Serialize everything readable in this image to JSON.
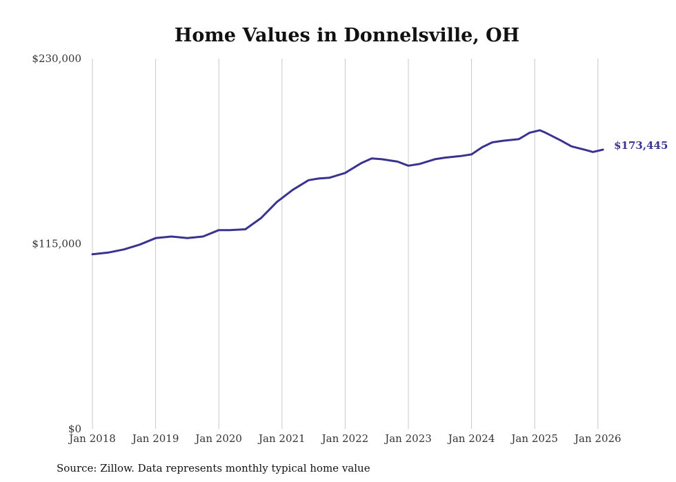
{
  "chart_data": {
    "type": "line",
    "title": "Home Values in Donnelsville, OH",
    "xlabel": "",
    "ylabel": "",
    "ylim": [
      0,
      230000
    ],
    "y_ticks": [
      {
        "value": 0,
        "label": "$0"
      },
      {
        "value": 115000,
        "label": "$115,000"
      },
      {
        "value": 230000,
        "label": "$230,000"
      }
    ],
    "x_ticks": [
      {
        "value": 2018.0,
        "label": "Jan 2018"
      },
      {
        "value": 2019.0,
        "label": "Jan 2019"
      },
      {
        "value": 2020.0,
        "label": "Jan 2020"
      },
      {
        "value": 2021.0,
        "label": "Jan 2021"
      },
      {
        "value": 2022.0,
        "label": "Jan 2022"
      },
      {
        "value": 2023.0,
        "label": "Jan 2023"
      },
      {
        "value": 2024.0,
        "label": "Jan 2024"
      },
      {
        "value": 2025.0,
        "label": "Jan 2025"
      },
      {
        "value": 2026.0,
        "label": "Jan 2026"
      }
    ],
    "xlim": [
      2018.0,
      2026.08
    ],
    "grid": "vertical",
    "series": [
      {
        "name": "Typical home value",
        "color": "#3a3290",
        "x": [
          2018.0,
          2018.25,
          2018.5,
          2018.75,
          2019.0,
          2019.25,
          2019.5,
          2019.75,
          2020.0,
          2020.17,
          2020.42,
          2020.67,
          2020.92,
          2021.17,
          2021.42,
          2021.58,
          2021.75,
          2022.0,
          2022.25,
          2022.42,
          2022.58,
          2022.83,
          2023.0,
          2023.17,
          2023.42,
          2023.58,
          2023.83,
          2024.0,
          2024.17,
          2024.33,
          2024.5,
          2024.75,
          2024.92,
          2025.08,
          2025.17,
          2025.42,
          2025.58,
          2025.83,
          2025.92,
          2026.08
        ],
        "values": [
          108500,
          109500,
          111500,
          114500,
          118500,
          119500,
          118500,
          119500,
          123500,
          123500,
          124000,
          131000,
          141000,
          148500,
          154500,
          155500,
          156000,
          159000,
          165000,
          168000,
          167500,
          166000,
          163500,
          164500,
          167500,
          168500,
          169500,
          170500,
          175000,
          178000,
          179000,
          180000,
          184000,
          185500,
          184000,
          179000,
          175500,
          173000,
          172000,
          173445
        ]
      }
    ],
    "annotations": [
      {
        "text": "$173,445",
        "x": 2026.08,
        "y": 173445
      }
    ],
    "source": "Source: Zillow. Data represents monthly typical home value"
  }
}
